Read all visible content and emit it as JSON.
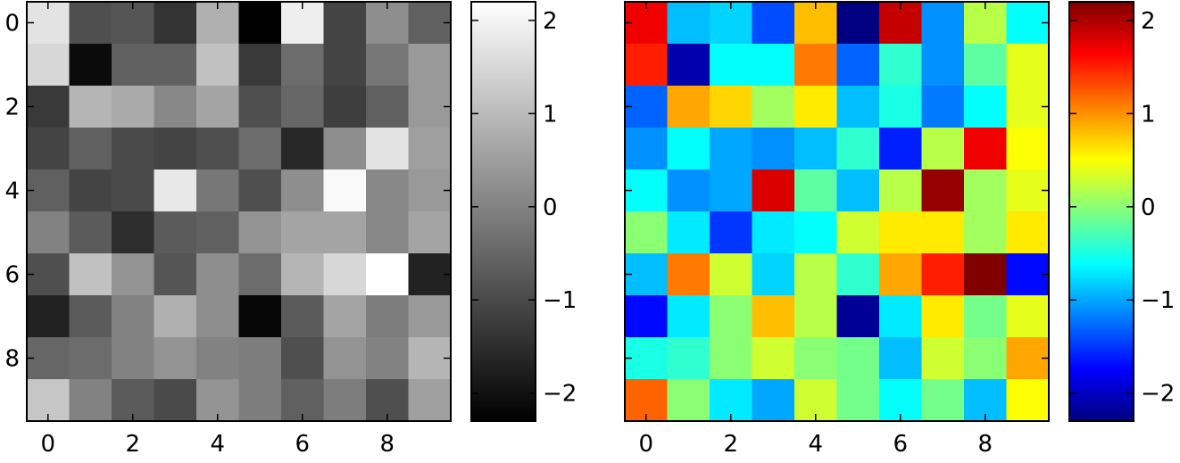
{
  "chart_data": [
    {
      "type": "heatmap",
      "colormap": "gray",
      "x_ticks": [
        "0",
        "2",
        "4",
        "6",
        "8"
      ],
      "y_ticks": [
        "0",
        "2",
        "4",
        "6",
        "8"
      ],
      "colorbar_ticks": [
        "2",
        "1",
        "0",
        "−1",
        "−2"
      ],
      "colorbar_range": [
        -2.3,
        2.2
      ],
      "values": [
        [
          1.7,
          -0.9,
          -0.8,
          -1.4,
          0.8,
          -2.3,
          1.9,
          -1.1,
          0.2,
          -0.6
        ],
        [
          1.5,
          -2.1,
          -0.6,
          -0.6,
          1.1,
          -1.3,
          -0.4,
          -1.1,
          -0.2,
          0.4
        ],
        [
          -1.3,
          0.9,
          0.7,
          0.1,
          0.6,
          -0.9,
          -0.5,
          -1.2,
          -0.6,
          0.4
        ],
        [
          -1.1,
          -0.6,
          -1.0,
          -1.1,
          -0.9,
          -0.4,
          -1.6,
          0.2,
          1.7,
          0.5
        ],
        [
          -0.6,
          -1.1,
          -1.0,
          1.8,
          -0.2,
          -0.9,
          0.2,
          2.1,
          0.1,
          0.4
        ],
        [
          0.0,
          -0.7,
          -1.5,
          -0.7,
          -0.6,
          0.3,
          0.6,
          0.6,
          0.1,
          0.6
        ],
        [
          -0.9,
          1.1,
          0.3,
          -0.8,
          0.2,
          -0.4,
          0.9,
          1.5,
          2.2,
          -1.7
        ],
        [
          -1.7,
          -0.7,
          0.0,
          0.8,
          0.2,
          -2.2,
          -0.7,
          0.6,
          -0.1,
          0.4
        ],
        [
          -0.5,
          -0.4,
          0.0,
          0.3,
          0.0,
          -0.1,
          -0.9,
          0.3,
          0.0,
          0.9
        ],
        [
          1.2,
          0.0,
          -0.7,
          -1.0,
          0.3,
          -0.1,
          -0.6,
          -0.1,
          -0.9,
          0.5
        ]
      ]
    },
    {
      "type": "heatmap",
      "colormap": "jet",
      "x_ticks": [
        "0",
        "2",
        "4",
        "6",
        "8"
      ],
      "y_ticks": [
        "0",
        "2",
        "4",
        "6",
        "8"
      ],
      "colorbar_ticks": [
        "2",
        "1",
        "0",
        "−1",
        "−2"
      ],
      "colorbar_range": [
        -2.3,
        2.2
      ],
      "values": [
        [
          1.7,
          -0.9,
          -0.8,
          -1.4,
          0.8,
          -2.3,
          1.9,
          -1.1,
          0.2,
          -0.6
        ],
        [
          1.5,
          -2.1,
          -0.6,
          -0.6,
          1.1,
          -1.3,
          -0.4,
          -1.1,
          -0.2,
          0.4
        ],
        [
          -1.3,
          0.9,
          0.7,
          0.1,
          0.6,
          -0.9,
          -0.5,
          -1.2,
          -0.6,
          0.4
        ],
        [
          -1.1,
          -0.6,
          -1.0,
          -1.1,
          -0.9,
          -0.4,
          -1.6,
          0.2,
          1.7,
          0.5
        ],
        [
          -0.6,
          -1.1,
          -1.0,
          1.8,
          -0.2,
          -0.9,
          0.2,
          2.1,
          0.1,
          0.4
        ],
        [
          0.0,
          -0.7,
          -1.5,
          -0.7,
          -0.6,
          0.3,
          0.6,
          0.6,
          0.1,
          0.6
        ],
        [
          -0.9,
          1.1,
          0.3,
          -0.8,
          0.2,
          -0.4,
          0.9,
          1.5,
          2.2,
          -1.7
        ],
        [
          -1.7,
          -0.7,
          0.0,
          0.8,
          0.2,
          -2.2,
          -0.7,
          0.6,
          -0.1,
          0.4
        ],
        [
          -0.5,
          -0.4,
          0.0,
          0.3,
          0.0,
          -0.1,
          -0.9,
          0.3,
          0.0,
          0.9
        ],
        [
          1.2,
          0.0,
          -0.7,
          -1.0,
          0.3,
          -0.1,
          -0.6,
          -0.1,
          -0.9,
          0.5
        ]
      ]
    }
  ]
}
